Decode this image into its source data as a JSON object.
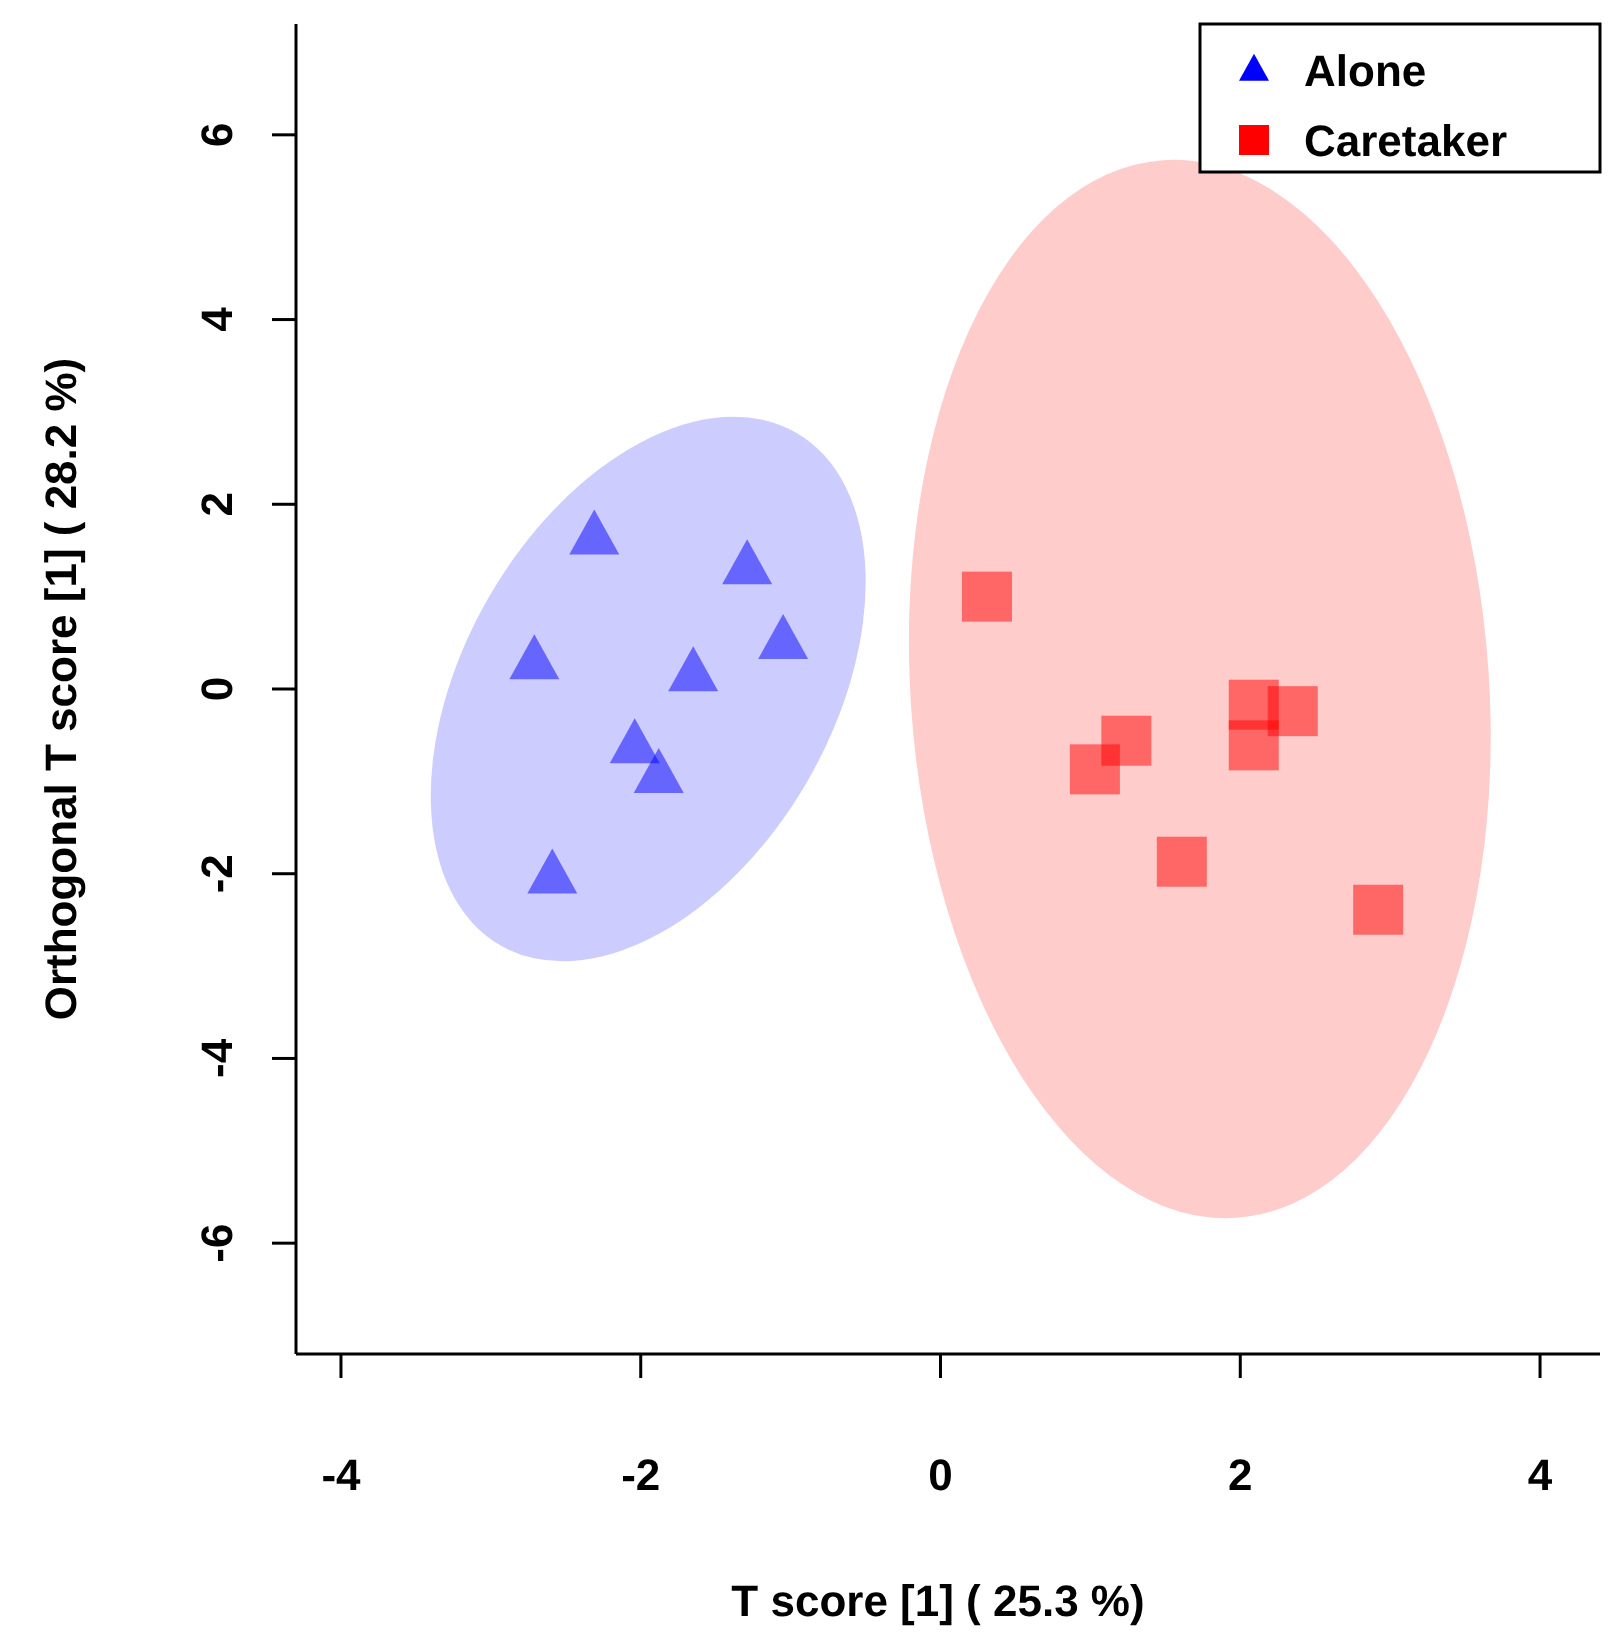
{
  "chart_data": {
    "type": "scatter",
    "xlabel": "T score [1] ( 25.3 %)",
    "ylabel": "Orthogonal T score [1] ( 28.2 %)",
    "xlim": [
      -4.3,
      4.4
    ],
    "ylim": [
      -7.2,
      7.2
    ],
    "xticks": [
      -4,
      -2,
      0,
      2,
      4
    ],
    "yticks": [
      -6,
      -4,
      -2,
      0,
      2,
      4,
      6
    ],
    "grid": false,
    "legend": "top right",
    "series": [
      {
        "name": "Alone",
        "color": "#0000ff",
        "marker": "triangle",
        "x": [
          -2.31,
          -2.71,
          -1.29,
          -1.05,
          -1.65,
          -2.04,
          -1.88,
          -2.59
        ],
        "values": [
          1.65,
          0.3,
          1.33,
          0.52,
          0.17,
          -0.61,
          -0.93,
          -2.02
        ]
      },
      {
        "name": "Caretaker",
        "color": "#ff0000",
        "marker": "square",
        "x": [
          0.31,
          1.03,
          1.24,
          1.61,
          2.09,
          2.09,
          2.35,
          2.92
        ],
        "values": [
          1.0,
          -0.87,
          -0.56,
          -1.87,
          -0.17,
          -0.61,
          -0.24,
          -2.39
        ]
      }
    ]
  }
}
